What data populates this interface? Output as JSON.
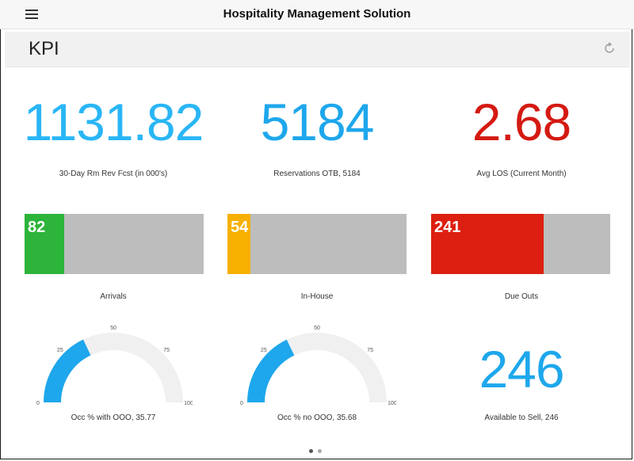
{
  "app": {
    "title": "Hospitality Management Solution"
  },
  "page": {
    "title": "KPI"
  },
  "kpis": {
    "forecast": {
      "value": "1131.82",
      "label": "30-Day Rm Rev Fcst (in 000's)",
      "color": "#29b6f6"
    },
    "reservations": {
      "value": "5184",
      "label": "Reservations OTB, 5184",
      "color": "#1ea7ec"
    },
    "avg_los": {
      "value": "2.68",
      "label": "Avg LOS (Current Month)",
      "color": "#d41a12"
    },
    "available": {
      "value": "246",
      "label": "Available to Sell, 246",
      "color": "#1ea7ec"
    }
  },
  "bars": {
    "arrivals": {
      "value": "82",
      "label": "Arrivals",
      "fraction": 0.22,
      "color": "#2db43a"
    },
    "in_house": {
      "value": "54",
      "label": "In-House",
      "fraction": 0.13,
      "color": "#f7b000"
    },
    "due_outs": {
      "value": "241",
      "label": "Due Outs",
      "fraction": 0.63,
      "color": "#dc1f10"
    }
  },
  "gauges": {
    "occ_with_ooo": {
      "value": 35.77,
      "label": "Occ % with OOO, 35.77"
    },
    "occ_no_ooo": {
      "value": 35.68,
      "label": "Occ % no OOO, 35.68"
    },
    "ticks": [
      "0",
      "25",
      "50",
      "75",
      "100"
    ],
    "color": "#1ea7ec",
    "track_color": "#f0f0f0"
  },
  "icons": {
    "menu": "hamburger-menu-icon",
    "refresh": "refresh-icon"
  },
  "pager": {
    "count": 2,
    "active": 0
  }
}
